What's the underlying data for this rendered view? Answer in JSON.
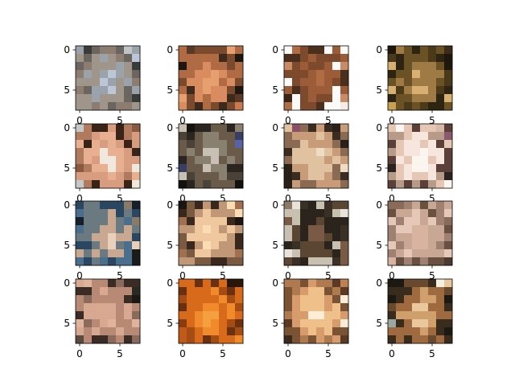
{
  "chart_data": {
    "type": "heatmap",
    "layout": {
      "rows": 4,
      "cols": 4
    },
    "image_size": [
      8,
      8
    ],
    "x_ticks": [
      0,
      5
    ],
    "y_ticks": [
      0,
      5
    ],
    "panels": [
      {
        "palette": [
          "#3a3c3a",
          "#6b6560",
          "#8c7d70",
          "#a0958a",
          "#9aa3ab",
          "#bcc6d6",
          "#5d4c40",
          "#c0c4c4"
        ]
      },
      {
        "palette": [
          "#1f1610",
          "#3d2a1c",
          "#7a4a2e",
          "#b06a44",
          "#d98c5f",
          "#e6a070",
          "#c97a50",
          "#5a3a26"
        ]
      },
      {
        "palette": [
          "#f6eee6",
          "#fbfaf8",
          "#4a2e1e",
          "#7d4a2e",
          "#9c5c38",
          "#b06c44",
          "#c98a66",
          "#3a2418"
        ]
      },
      {
        "palette": [
          "#1f170c",
          "#2d2412",
          "#4a3a1a",
          "#6a5226",
          "#a07a44",
          "#d8b072",
          "#c8a050",
          "#3a2c18"
        ]
      },
      {
        "palette": [
          "#1a120e",
          "#3a2418",
          "#b07a5e",
          "#d89c80",
          "#e8b090",
          "#f0e8dc",
          "#8a5a40",
          "#c6c8c8"
        ]
      },
      {
        "palette": [
          "#14120f",
          "#2a2520",
          "#4a4238",
          "#6a5a4a",
          "#8a8070",
          "#c8c0b4",
          "#5a62a6",
          "#3a3e62"
        ]
      },
      {
        "palette": [
          "#2a2018",
          "#3a2c20",
          "#8a6a52",
          "#c89c78",
          "#e0c2a0",
          "#f0dcc4",
          "#5a3a30",
          "#8a5068"
        ]
      },
      {
        "palette": [
          "#2c2220",
          "#5a4038",
          "#b89a88",
          "#e6c6b4",
          "#f6e6de",
          "#fcf4ee",
          "#8a5a6a",
          "#d8b8a6"
        ]
      },
      {
        "palette": [
          "#16202a",
          "#2a4660",
          "#4a6e8c",
          "#6a7a80",
          "#c8a890",
          "#e8d0bc",
          "#8a7a6a",
          "#1a1c1a"
        ]
      },
      {
        "palette": [
          "#1c1410",
          "#3a281c",
          "#7a5a40",
          "#c09878",
          "#f0c8a0",
          "#fcdcb4",
          "#a07050",
          "#e8dcc0"
        ]
      },
      {
        "palette": [
          "#e8e4dc",
          "#c8c0b0",
          "#3a3026",
          "#2a241c",
          "#5a4632",
          "#7a5a44",
          "#1c1812",
          "#8a7a66"
        ]
      },
      {
        "palette": [
          "#3a2a20",
          "#6a5040",
          "#a08070",
          "#c8a894",
          "#e6c8b8",
          "#d8b4a0",
          "#8a6a58",
          "#4a3a30"
        ]
      },
      {
        "palette": [
          "#1c1814",
          "#3a2c24",
          "#8a6a5a",
          "#b88a76",
          "#d8a890",
          "#e0b49c",
          "#5a4a40",
          "#2a2a24"
        ]
      },
      {
        "palette": [
          "#2a1608",
          "#6a3010",
          "#a44c14",
          "#d86a1c",
          "#f08a2a",
          "#f4a040",
          "#8a3c10",
          "#c05a18"
        ]
      },
      {
        "palette": [
          "#3a2a1c",
          "#7a5234",
          "#b07a50",
          "#d89c6c",
          "#f0c08a",
          "#fcecd8",
          "#c08050",
          "#5a3a24"
        ]
      },
      {
        "palette": [
          "#1c1812",
          "#3a2c1c",
          "#6a4a2e",
          "#a06a40",
          "#d0a06c",
          "#e8c89c",
          "#f4f0e4",
          "#9aa8a0"
        ]
      }
    ]
  }
}
